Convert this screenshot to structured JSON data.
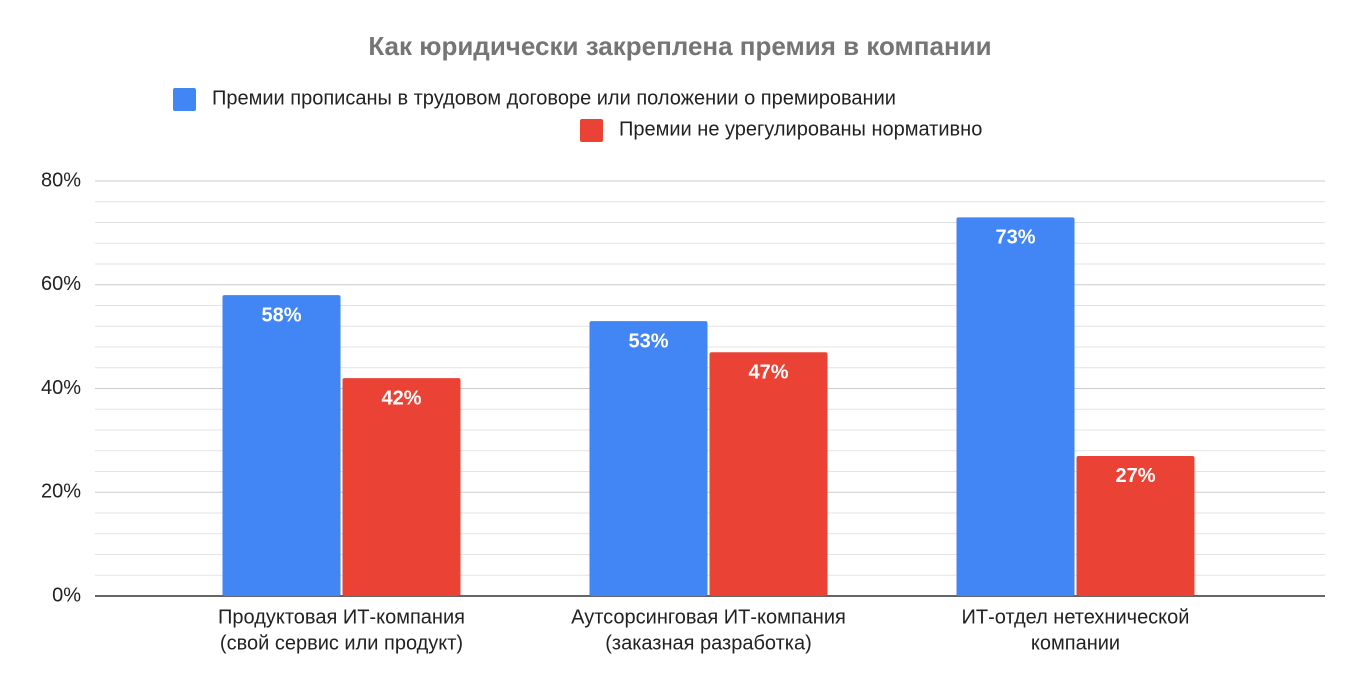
{
  "chart_data": {
    "type": "bar",
    "title": "Как юридически закреплена премия в компании",
    "categories": [
      [
        "Продуктовая ИТ-компания",
        "(свой сервис или продукт)"
      ],
      [
        "Аутсорсинговая ИТ-компания",
        "(заказная разработка)"
      ],
      [
        "ИТ-отдел нетехнической",
        "компании"
      ]
    ],
    "series": [
      {
        "name": "Премии прописаны в трудовом договоре или положении о премировании",
        "color": "#4285f4",
        "values": [
          58,
          53,
          73
        ],
        "value_labels": [
          "58%",
          "53%",
          "73%"
        ]
      },
      {
        "name": "Премии не урегулированы нормативно",
        "color": "#ea4335",
        "values": [
          42,
          47,
          27
        ],
        "value_labels": [
          "42%",
          "47%",
          "27%"
        ]
      }
    ],
    "ylim": [
      0,
      80
    ],
    "yticks": [
      {
        "value": 0,
        "label": "0%"
      },
      {
        "value": 20,
        "label": "20%"
      },
      {
        "value": 40,
        "label": "40%"
      },
      {
        "value": 60,
        "label": "60%"
      },
      {
        "value": 80,
        "label": "80%"
      }
    ],
    "grid": true,
    "minor_grid": true
  }
}
